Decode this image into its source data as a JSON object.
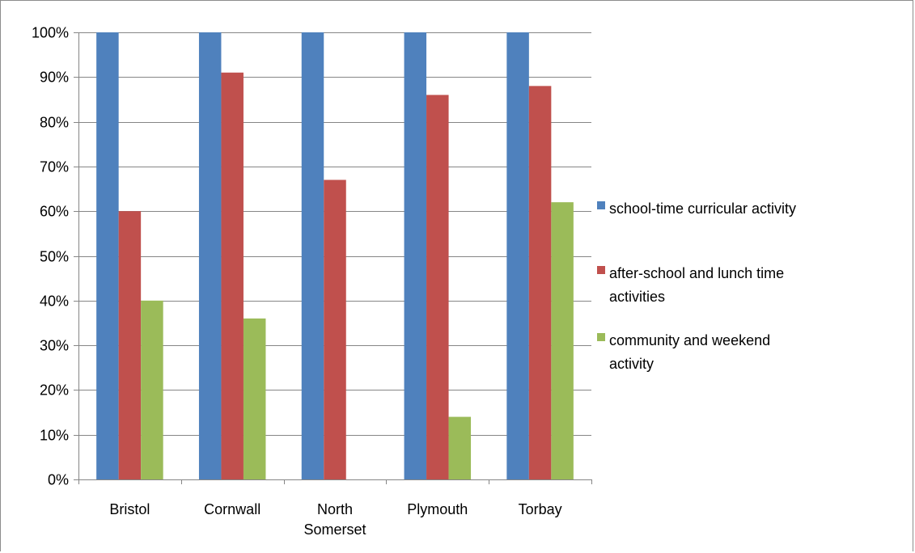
{
  "chart_data": {
    "type": "bar",
    "title": "",
    "xlabel": "",
    "ylabel": "",
    "categories": [
      [
        "Bristol"
      ],
      [
        "Cornwall"
      ],
      [
        "North",
        "Somerset"
      ],
      [
        "Plymouth"
      ],
      [
        "Torbay"
      ]
    ],
    "category_names": [
      "Bristol",
      "Cornwall",
      "North Somerset",
      "Plymouth",
      "Torbay"
    ],
    "series": [
      {
        "name": "school-time curricular activity",
        "color": "#4f81bd",
        "values": [
          100,
          100,
          100,
          100,
          100
        ]
      },
      {
        "name": "after-school and lunch time activities",
        "color": "#c0504d",
        "values": [
          60,
          91,
          67,
          86,
          88
        ]
      },
      {
        "name": "community and weekend activity",
        "color": "#9bbb59",
        "values": [
          40,
          36,
          0,
          14,
          62
        ]
      }
    ],
    "ylim": [
      0,
      100
    ],
    "yticks": [
      0,
      10,
      20,
      30,
      40,
      50,
      60,
      70,
      80,
      90,
      100
    ],
    "ytick_labels": [
      "0%",
      "10%",
      "20%",
      "30%",
      "40%",
      "50%",
      "60%",
      "70%",
      "80%",
      "90%",
      "100%"
    ],
    "grid": true,
    "legend_position": "right",
    "legend_lines": [
      [
        "school-time curricular activity"
      ],
      [
        "after-school and lunch time",
        "activities"
      ],
      [
        "community and weekend",
        "activity"
      ]
    ]
  }
}
